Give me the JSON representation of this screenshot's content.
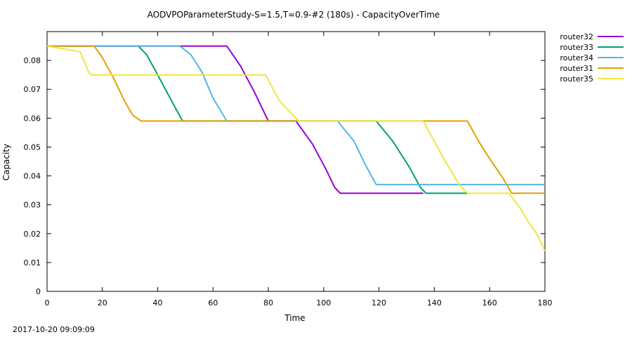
{
  "timestamp": "2017-10-20 09:09:09",
  "chart_data": {
    "type": "line",
    "title": "AODVPOParameterStudy-S=1.5,T=0.9-#2 (180s) - CapacityOverTime",
    "xlabel": "Time",
    "ylabel": "Capacity",
    "xlim": [
      0,
      180
    ],
    "ylim": [
      0,
      0.09
    ],
    "xticks": [
      0,
      20,
      40,
      60,
      80,
      100,
      120,
      140,
      160,
      180
    ],
    "yticks": [
      0,
      0.01,
      0.02,
      0.03,
      0.04,
      0.05,
      0.06,
      0.07,
      0.08
    ],
    "ytick_labels": [
      "0",
      "0.01",
      "0.02",
      "0.03",
      "0.04",
      "0.05",
      "0.06",
      "0.07",
      "0.08"
    ],
    "grid": false,
    "legend_position": "top-right outside",
    "series": [
      {
        "name": "router32",
        "color": "#9400d3",
        "points": [
          [
            0,
            0.085
          ],
          [
            48,
            0.085
          ],
          [
            65,
            0.085
          ],
          [
            70,
            0.078
          ],
          [
            75,
            0.069
          ],
          [
            80,
            0.059
          ],
          [
            90,
            0.059
          ],
          [
            96,
            0.051
          ],
          [
            101,
            0.042
          ],
          [
            104,
            0.036
          ],
          [
            106,
            0.034
          ],
          [
            136,
            0.034
          ]
        ]
      },
      {
        "name": "router33",
        "color": "#009e73",
        "points": [
          [
            0,
            0.085
          ],
          [
            33,
            0.085
          ],
          [
            36,
            0.082
          ],
          [
            40,
            0.075
          ],
          [
            45,
            0.066
          ],
          [
            49,
            0.059
          ],
          [
            119,
            0.059
          ],
          [
            125,
            0.052
          ],
          [
            131,
            0.043
          ],
          [
            135,
            0.036
          ],
          [
            137,
            0.034
          ],
          [
            152,
            0.034
          ]
        ]
      },
      {
        "name": "router34",
        "color": "#56b4e9",
        "points": [
          [
            0,
            0.085
          ],
          [
            48,
            0.085
          ],
          [
            52,
            0.082
          ],
          [
            56,
            0.076
          ],
          [
            60,
            0.067
          ],
          [
            65,
            0.059
          ],
          [
            105,
            0.059
          ],
          [
            111,
            0.052
          ],
          [
            115,
            0.044
          ],
          [
            119,
            0.037
          ],
          [
            180,
            0.037
          ]
        ]
      },
      {
        "name": "router31",
        "color": "#e69f00",
        "points": [
          [
            0,
            0.085
          ],
          [
            17,
            0.085
          ],
          [
            20,
            0.081
          ],
          [
            24,
            0.074
          ],
          [
            28,
            0.066
          ],
          [
            31,
            0.061
          ],
          [
            34,
            0.059
          ],
          [
            152,
            0.059
          ],
          [
            156,
            0.052
          ],
          [
            160,
            0.046
          ],
          [
            165,
            0.039
          ],
          [
            168,
            0.034
          ],
          [
            180,
            0.034
          ]
        ]
      },
      {
        "name": "router35",
        "color": "#f0e442",
        "points": [
          [
            0,
            0.085
          ],
          [
            12,
            0.083
          ],
          [
            15,
            0.076
          ],
          [
            16,
            0.075
          ],
          [
            79,
            0.075
          ],
          [
            84,
            0.066
          ],
          [
            91,
            0.059
          ],
          [
            136,
            0.059
          ],
          [
            140,
            0.052
          ],
          [
            144,
            0.045
          ],
          [
            149,
            0.037
          ],
          [
            152,
            0.034
          ],
          [
            167,
            0.034
          ],
          [
            171,
            0.029
          ],
          [
            174,
            0.024
          ],
          [
            177,
            0.02
          ],
          [
            180,
            0.014
          ]
        ]
      }
    ]
  }
}
